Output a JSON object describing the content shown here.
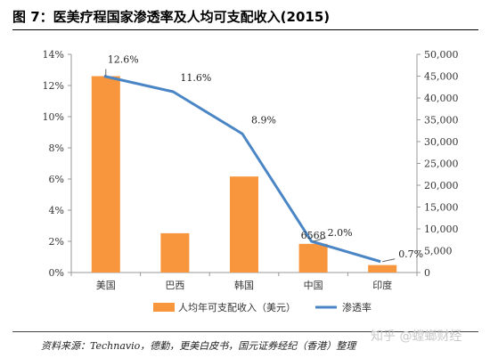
{
  "title": "图 7：医美疗程国家渗透率及人均可支配收入(2015)",
  "source": "资料来源：Technavio，德勤，更美白皮书，国元证券经纪（香港）整理",
  "watermark": "知乎 @螳螂财经",
  "colors": {
    "bar": "#f7963d",
    "line": "#4a86c5"
  },
  "chart_data": {
    "type": "bar",
    "categories": [
      "美国",
      "巴西",
      "韩国",
      "中国",
      "印度"
    ],
    "series": [
      {
        "name": "人均年可支配收入（美元）",
        "type": "bar",
        "axis": "right",
        "values": [
          45000,
          9000,
          22000,
          6568,
          1700
        ]
      },
      {
        "name": "渗透率",
        "type": "line",
        "axis": "left",
        "values": [
          12.6,
          11.6,
          8.9,
          2.0,
          0.7
        ]
      }
    ],
    "data_labels": [
      "12.6%",
      "11.6%",
      "8.9%",
      "2.0%",
      "0.7%",
      "6568"
    ],
    "y_left": {
      "ticks": [
        "0%",
        "2%",
        "4%",
        "6%",
        "8%",
        "10%",
        "12%",
        "14%"
      ],
      "lim": [
        0,
        14
      ]
    },
    "y_right": {
      "ticks": [
        "0",
        "5,000",
        "10,000",
        "15,000",
        "20,000",
        "25,000",
        "30,000",
        "35,000",
        "40,000",
        "45,000",
        "50,000"
      ],
      "lim": [
        0,
        50000
      ]
    },
    "legend": "bottom",
    "grid": false
  }
}
